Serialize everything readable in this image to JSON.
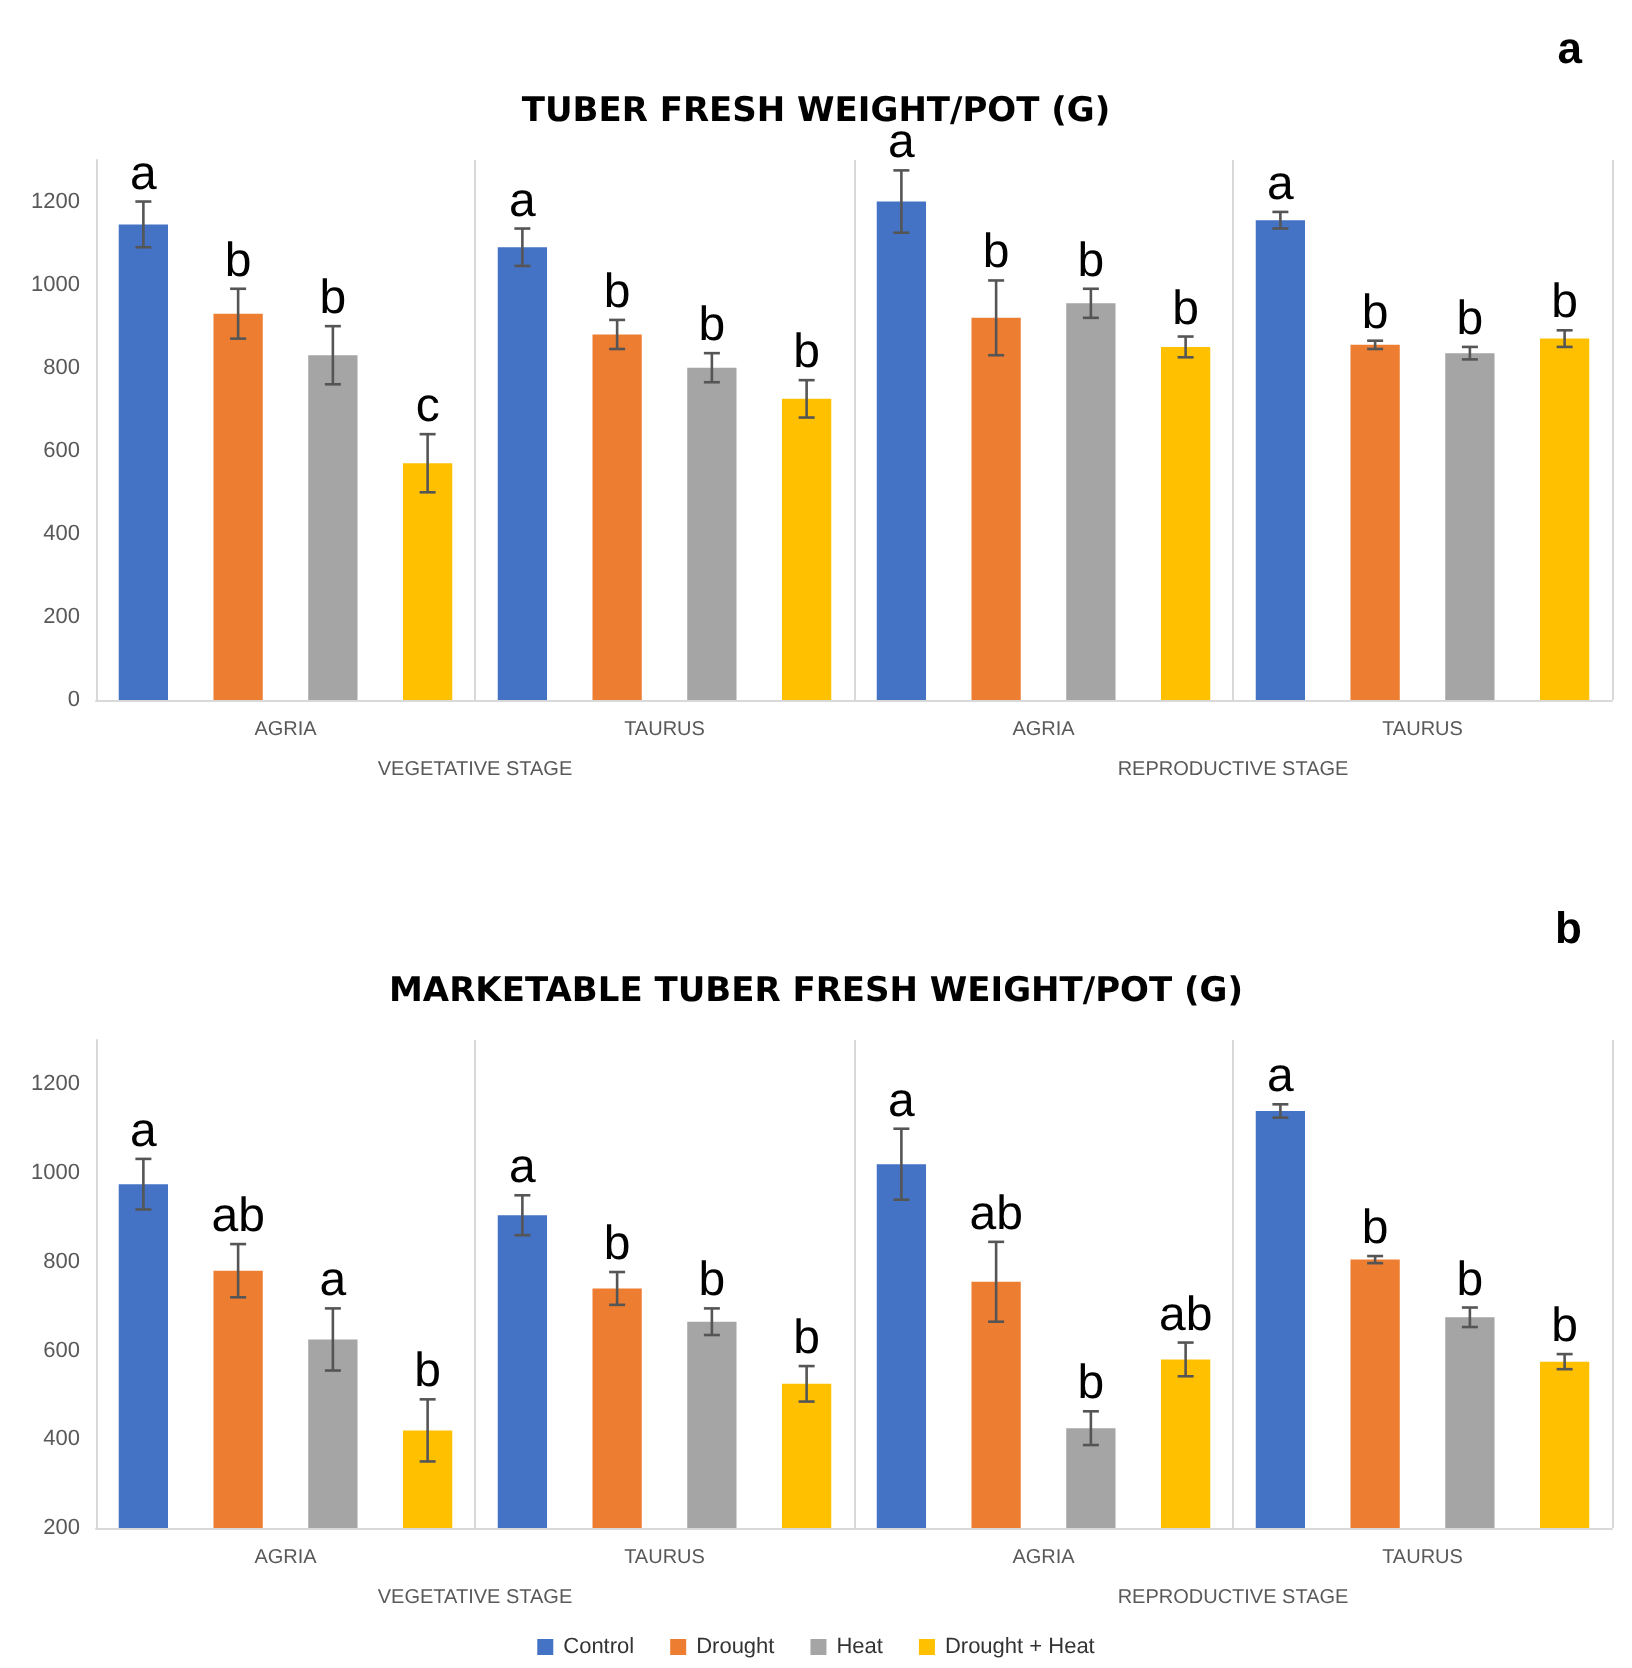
{
  "chart_data": [
    {
      "type": "bar",
      "title": "TUBER FRESH WEIGHT/POT (G)",
      "subtitle": "a",
      "categories": [
        "AGRIA",
        "TAURUS",
        "AGRIA",
        "TAURUS"
      ],
      "annotations": [
        "VEGETATIVE STAGE",
        "REPRODUCTIVE STAGE"
      ],
      "series": [
        {
          "color": "#4472c4",
          "values": [
            1145,
            1090,
            1200,
            1155
          ],
          "errors": [
            55,
            45,
            75,
            20
          ],
          "value_labels": [
            "a",
            "a",
            "a",
            "a"
          ]
        },
        {
          "color": "#ed7d31",
          "values": [
            930,
            880,
            920,
            855
          ],
          "errors": [
            60,
            35,
            90,
            10
          ],
          "value_labels": [
            "b",
            "b",
            "b",
            "b"
          ]
        },
        {
          "color": "#a5a5a5",
          "values": [
            830,
            800,
            955,
            835
          ],
          "errors": [
            70,
            35,
            35,
            15
          ],
          "value_labels": [
            "b",
            "b",
            "b",
            "b"
          ]
        },
        {
          "color": "#ffc000",
          "values": [
            570,
            725,
            850,
            870
          ],
          "errors": [
            70,
            45,
            25,
            20
          ],
          "value_labels": [
            "c",
            "b",
            "b",
            "b"
          ]
        }
      ],
      "ylim": [
        0,
        1300
      ],
      "yticks": [
        0,
        200,
        400,
        600,
        800,
        1000,
        1200
      ],
      "grid": "x",
      "legend": false
    },
    {
      "type": "bar",
      "title": "MARKETABLE TUBER FRESH WEIGHT/POT (G)",
      "subtitle": "b",
      "categories": [
        "AGRIA",
        "TAURUS",
        "AGRIA",
        "TAURUS"
      ],
      "annotations": [
        "VEGETATIVE STAGE",
        "REPRODUCTIVE STAGE"
      ],
      "series": [
        {
          "name": "Control",
          "color": "#4472c4",
          "values": [
            975,
            905,
            1020,
            1140
          ],
          "errors": [
            57,
            45,
            80,
            15
          ],
          "value_labels": [
            "a",
            "a",
            "a",
            "a"
          ]
        },
        {
          "name": "Drought",
          "color": "#ed7d31",
          "values": [
            780,
            740,
            755,
            805
          ],
          "errors": [
            60,
            37,
            90,
            8
          ],
          "value_labels": [
            "ab",
            "b",
            "ab",
            "b"
          ]
        },
        {
          "name": "Heat",
          "color": "#a5a5a5",
          "values": [
            625,
            665,
            425,
            675
          ],
          "errors": [
            70,
            30,
            38,
            22
          ],
          "value_labels": [
            "a",
            "b",
            "b",
            "b"
          ]
        },
        {
          "name": "Drought + Heat",
          "color": "#ffc000",
          "values": [
            420,
            525,
            580,
            575
          ],
          "errors": [
            70,
            40,
            38,
            17
          ],
          "value_labels": [
            "b",
            "b",
            "ab",
            "b"
          ]
        }
      ],
      "ylim": [
        200,
        1300
      ],
      "yticks": [
        200,
        400,
        600,
        800,
        1000,
        1200
      ],
      "grid": "x",
      "legend": "bottom"
    }
  ]
}
